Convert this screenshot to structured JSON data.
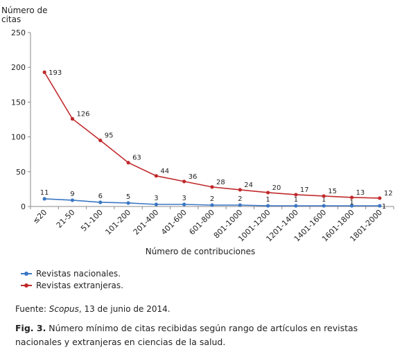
{
  "chart_data": {
    "type": "line",
    "ylabel": "Número de\ncitas",
    "xlabel": "Número de contribuciones",
    "ylim": [
      0,
      250
    ],
    "yticks": [
      0,
      50,
      100,
      150,
      200,
      250
    ],
    "categories": [
      "≤20",
      "21-50",
      "51-100",
      "101-200",
      "201-400",
      "401-600",
      "601-800",
      "801-1000",
      "1001-1200",
      "1201-1400",
      "1401-1600",
      "1601-1800",
      "1801-2000"
    ],
    "series": [
      {
        "name": "Revistas nacionales.",
        "color": "#3a76c4",
        "values": [
          11,
          9,
          6,
          5,
          3,
          3,
          2,
          2,
          1,
          1,
          1,
          1,
          1
        ]
      },
      {
        "name": "Revistas extranjeras.",
        "color": "#c0292b",
        "values": [
          193,
          126,
          95,
          63,
          44,
          36,
          28,
          24,
          20,
          17,
          15,
          13,
          12
        ]
      }
    ],
    "legend_position": "bottom-left",
    "grid": false
  },
  "source": {
    "prefix": "Fuente: ",
    "italic": "Scopus",
    "suffix": ", 13 de junio de 2014."
  },
  "caption": {
    "label": "Fig. 3.",
    "text": " Número mínimo de citas recibidas según rango de artículos en revistas nacionales y extranjeras en ciencias  de la salud."
  }
}
